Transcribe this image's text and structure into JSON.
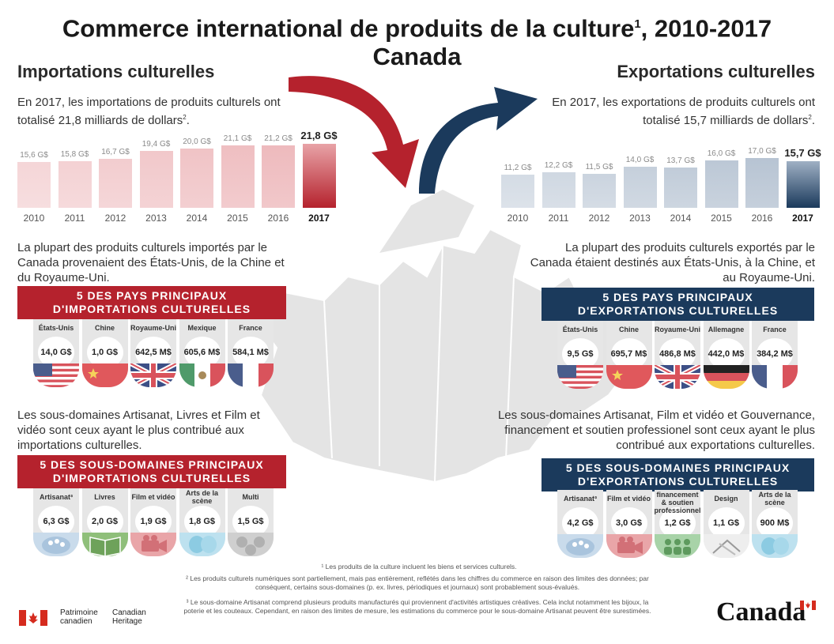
{
  "title": {
    "main": "Commerce international de produits de la culture",
    "sup": "1",
    "years": ", 2010-2017",
    "country": "Canada"
  },
  "imports": {
    "heading": "Importations culturelles",
    "summary_pre": "En 2017, les importations de produits culturels ont totalisé 21,8 milliards de dollars",
    "summary_sup": "2",
    "summary_post": ".",
    "years": [
      "2010",
      "2011",
      "2012",
      "2013",
      "2014",
      "2015",
      "2016",
      "2017"
    ],
    "value_labels": [
      "15,6 G$",
      "15,8 G$",
      "16,7 G$",
      "19,4 G$",
      "20,0 G$",
      "21,1 G$",
      "21,2 G$",
      "21,8 G$"
    ],
    "countries_text": "La plupart des produits culturels importés par le Canada provenaient des États-Unis, de la Chine et du Royaume-Uni.",
    "countries_banner_1": "5 DES PAYS PRINCIPAUX",
    "countries_banner_2": "D'IMPORTATIONS CULTURELLES",
    "countries": [
      {
        "name": "États-Unis",
        "value": "14,0 G$",
        "flag": "us-flag"
      },
      {
        "name": "Chine",
        "value": "1,0 G$",
        "flag": "china-flag"
      },
      {
        "name": "Royaume-Uni",
        "value": "642,5 M$",
        "flag": "uk-flag"
      },
      {
        "name": "Mexique",
        "value": "605,6 M$",
        "flag": "mexico-flag"
      },
      {
        "name": "France",
        "value": "584,1 M$",
        "flag": "france-flag"
      }
    ],
    "domains_text": "Les sous-domaines Artisanat, Livres et Film et vidéo sont ceux ayant le plus contribué aux importations culturelles.",
    "domains_banner_1": "5 DES SOUS-DOMAINES PRINCIPAUX",
    "domains_banner_2": "D'IMPORTATIONS CULTURELLES",
    "domains": [
      {
        "name": "Artisanat³",
        "value": "6,3 G$",
        "icon": "palette-icon"
      },
      {
        "name": "Livres",
        "value": "2,0 G$",
        "icon": "book-icon"
      },
      {
        "name": "Film et vidéo",
        "value": "1,9 G$",
        "icon": "camera-icon"
      },
      {
        "name": "Arts de la scène",
        "value": "1,8 G$",
        "icon": "masks-icon"
      },
      {
        "name": "Multi",
        "value": "1,5 G$",
        "icon": "multi-icon"
      }
    ]
  },
  "exports": {
    "heading": "Exportations culturelles",
    "summary_pre": "En 2017, les exportations de produits culturels ont totalisé 15,7 milliards de dollars",
    "summary_sup": "2",
    "summary_post": ".",
    "years": [
      "2010",
      "2011",
      "2012",
      "2013",
      "2014",
      "2015",
      "2016",
      "2017"
    ],
    "value_labels": [
      "11,2 G$",
      "12,2 G$",
      "11,5 G$",
      "14,0 G$",
      "13,7 G$",
      "16,0 G$",
      "17,0 G$",
      "15,7 G$"
    ],
    "countries_text": "La plupart des produits culturels exportés par le Canada étaient destinés aux États-Unis, à la Chine, et au Royaume-Uni.",
    "countries_banner_1": "5 DES PAYS PRINCIPAUX",
    "countries_banner_2": "D'EXPORTATIONS CULTURELLES",
    "countries": [
      {
        "name": "États-Unis",
        "value": "9,5 G$",
        "flag": "us-flag"
      },
      {
        "name": "Chine",
        "value": "695,7 M$",
        "flag": "china-flag"
      },
      {
        "name": "Royaume-Uni",
        "value": "486,8 M$",
        "flag": "uk-flag"
      },
      {
        "name": "Allemagne",
        "value": "442,0 M$",
        "flag": "germany-flag"
      },
      {
        "name": "France",
        "value": "384,2 M$",
        "flag": "france-flag"
      }
    ],
    "domains_text": "Les sous-domaines Artisanat, Film et vidéo et Gouvernance, financement et soutien professionel sont ceux ayant le plus contribué aux exportations culturelles.",
    "domains_banner_1": "5 DES SOUS-DOMAINES PRINCIPAUX",
    "domains_banner_2": "D'EXPORTATIONS CULTURELLES",
    "domains": [
      {
        "name": "Artisanat³",
        "value": "4,2 G$",
        "icon": "palette-icon"
      },
      {
        "name": "Film et vidéo",
        "value": "3,0 G$",
        "icon": "camera-icon"
      },
      {
        "name": "Gouvernance, financement & soutien professionnel",
        "value": "1,2 G$",
        "icon": "people-icon"
      },
      {
        "name": "Design",
        "value": "1,1 G$",
        "icon": "design-icon"
      },
      {
        "name": "Arts de la scène",
        "value": "900 M$",
        "icon": "masks-icon"
      }
    ]
  },
  "chart_data": [
    {
      "type": "bar",
      "title": "Importations culturelles",
      "categories": [
        "2010",
        "2011",
        "2012",
        "2013",
        "2014",
        "2015",
        "2016",
        "2017"
      ],
      "values": [
        15.6,
        15.8,
        16.7,
        19.4,
        20.0,
        21.1,
        21.2,
        21.8
      ],
      "unit": "G$",
      "color": "#b5222d"
    },
    {
      "type": "bar",
      "title": "Exportations culturelles",
      "categories": [
        "2010",
        "2011",
        "2012",
        "2013",
        "2014",
        "2015",
        "2016",
        "2017"
      ],
      "values": [
        11.2,
        12.2,
        11.5,
        14.0,
        13.7,
        16.0,
        17.0,
        15.7
      ],
      "unit": "G$",
      "color": "#1b3a5c"
    }
  ],
  "footnotes": {
    "n1": "¹ Les produits de la culture incluent les biens et services culturels.",
    "n2": "² Les produits culturels numériques sont partiellement, mais pas entièrement, reflétés dans les chiffres du commerce en raison des limites des données; par conséquent, certains sous-domaines (p. ex. livres, périodiques et journaux) sont probablement sous-évalués.",
    "n3": "³ Le sous-domaine Artisanat comprend plusieurs produits manufacturés qui proviennent d'activités artistiques créatives. Cela inclut notamment les bijoux, la poterie et les couteaux. Cependant, en raison des limites de mesure, les estimations du commerce pour le sous-domaine Artisanat peuvent être surestimées."
  },
  "fip": {
    "fr_1": "Patrimoine",
    "fr_2": "canadien",
    "en_1": "Canadian",
    "en_2": "Heritage"
  },
  "wordmark": "Canada",
  "colors": {
    "import_red": "#b5222d",
    "export_blue": "#1b3a5c",
    "card_grey": "#e6e6e6",
    "map_grey": "#e2e2e2"
  }
}
